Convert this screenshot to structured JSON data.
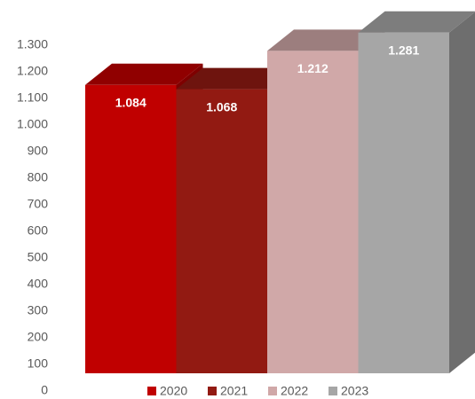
{
  "chart_data": {
    "type": "bar",
    "series": [
      {
        "name": "2020",
        "color": "#c00000",
        "values": [
          1084
        ],
        "value_labels": [
          "1.084"
        ]
      },
      {
        "name": "2021",
        "color": "#921a12",
        "values": [
          1068
        ],
        "value_labels": [
          "1.068"
        ]
      },
      {
        "name": "2022",
        "color": "#d0a8a8",
        "values": [
          1212
        ],
        "value_labels": [
          "1.212"
        ]
      },
      {
        "name": "2023",
        "color": "#a6a6a6",
        "values": [
          1281
        ],
        "value_labels": [
          "1.281"
        ]
      }
    ],
    "ylim": [
      0,
      1300
    ],
    "yticks": [
      0,
      100,
      200,
      300,
      400,
      500,
      600,
      700,
      800,
      900,
      {
        "value": 1000,
        "label": "1.000"
      },
      {
        "value": 1100,
        "label": "1.100"
      },
      {
        "value": 1200,
        "label": "1.200"
      },
      {
        "value": 1300,
        "label": "1.300"
      }
    ]
  }
}
